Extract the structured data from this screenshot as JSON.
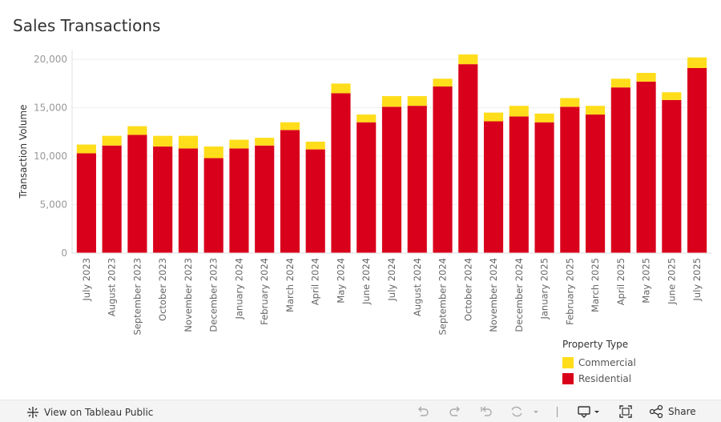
{
  "chart_data": {
    "type": "bar",
    "stacked": true,
    "title": "Sales Transactions",
    "xlabel": "",
    "ylabel": "Transaction Volume",
    "ylim": [
      0,
      21000
    ],
    "yticks": [
      0,
      5000,
      10000,
      15000,
      20000
    ],
    "ytick_labels": [
      "0",
      "5,000",
      "10,000",
      "15,000",
      "20,000"
    ],
    "grid": true,
    "legend_position": "bottom-right",
    "legend_title": "Property Type",
    "categories": [
      "July 2023",
      "August 2023",
      "September 2023",
      "October 2023",
      "November 2023",
      "December 2023",
      "January 2024",
      "February 2024",
      "March 2024",
      "April 2024",
      "May 2024",
      "June 2024",
      "July 2024",
      "August 2024",
      "September 2024",
      "October 2024",
      "November 2024",
      "December 2024",
      "January 2025",
      "February 2025",
      "March 2025",
      "April 2025",
      "May 2025",
      "June 2025",
      "July 2025"
    ],
    "series": [
      {
        "name": "Residential",
        "color": "#d9001b",
        "values": [
          10300,
          11100,
          12200,
          11000,
          10800,
          9800,
          10800,
          11100,
          12700,
          10700,
          16500,
          13500,
          15100,
          15200,
          17200,
          19500,
          13600,
          14100,
          13500,
          15100,
          14300,
          17100,
          17700,
          15800,
          19100
        ]
      },
      {
        "name": "Commercial",
        "color": "#ffdd1a",
        "values": [
          900,
          1000,
          900,
          1100,
          1300,
          1200,
          900,
          800,
          800,
          800,
          1000,
          800,
          1100,
          1000,
          800,
          1000,
          900,
          1100,
          900,
          900,
          900,
          900,
          900,
          800,
          1100
        ]
      }
    ],
    "legend_entries": [
      "Commercial",
      "Residential"
    ]
  },
  "toolbar": {
    "view_label": "View on Tableau Public",
    "share_label": "Share"
  }
}
